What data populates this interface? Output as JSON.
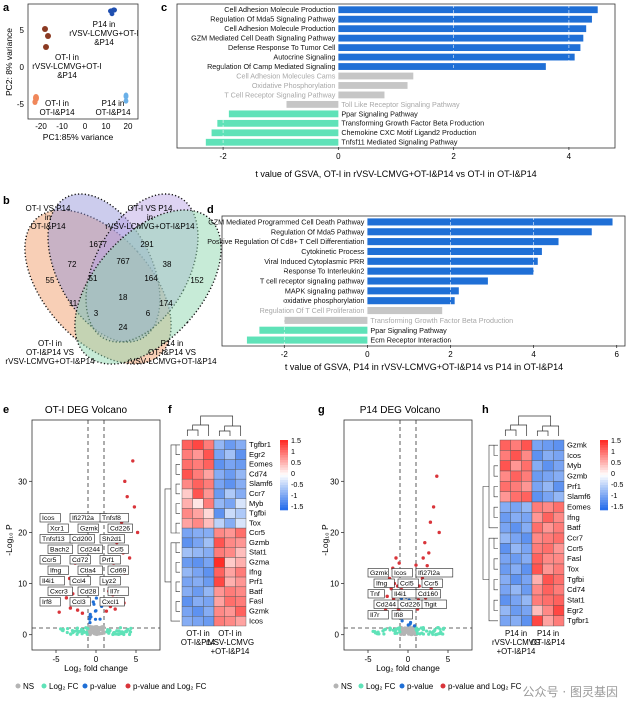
{
  "colors": {
    "blue": "#1f6fd6",
    "gray": "#c6c6c6",
    "teal": "#5fe2b8",
    "red": "#d9343a",
    "lightblue": "#6ab0e8",
    "ns_gray": "#b4b4b4"
  },
  "panels": {
    "a": {
      "letter": "a"
    },
    "b": {
      "letter": "b"
    },
    "c": {
      "letter": "c"
    },
    "d": {
      "letter": "d"
    },
    "e": {
      "letter": "e"
    },
    "f": {
      "letter": "f"
    },
    "g": {
      "letter": "g"
    },
    "h": {
      "letter": "h"
    }
  },
  "pca": {
    "xlabel": "PC1:85% variance",
    "ylabel": "PC2: 8% variance",
    "xticks": [
      "-20",
      "-10",
      "0",
      "10",
      "20"
    ],
    "yticks": [
      "5",
      "0",
      "-5"
    ],
    "groups": [
      {
        "label": "P14 in rVSV-LCMVG+OT-I &P14",
        "color": "#1f4fb0"
      },
      {
        "label": "OT-I in rVSV-LCMVG+OT-I &P14",
        "color": "#8b3a22"
      },
      {
        "label": "OT-I in OT-I&P14",
        "color": "#f0875a"
      },
      {
        "label": "P14 in OT-I&P14",
        "color": "#6ab0e8"
      }
    ],
    "label_lines": {
      "p14_rvsv": [
        "P14 in",
        "rVSV-LCMVG+OT-I",
        "&P14"
      ],
      "oti_rvsv": [
        "OT-I in",
        "rVSV-LCMVG+OT-I",
        "&P14"
      ],
      "oti_oti": [
        "OT-I in",
        "OT-I&P14"
      ],
      "p14_oti": [
        "P14 in",
        "OT-I&P14"
      ]
    }
  },
  "venn": {
    "labels": {
      "tl": [
        "OT-I VS P14",
        "in",
        "OT-I&P14"
      ],
      "tr": [
        "OT-I VS P14",
        "in",
        "rVSV-LCMVG+OT-I&P14"
      ],
      "bl": [
        "OT-I in",
        "OT-I&P14 VS",
        "rVSV-LCMVG+OT-I&P14"
      ],
      "br": [
        "P14 in",
        "OT-I&P14 VS",
        "rVSV-LCMVG+OT-I&P14"
      ]
    },
    "counts": [
      "55",
      "1677",
      "291",
      "152",
      "72",
      "38",
      "767",
      "51",
      "164",
      "18",
      "11",
      "174",
      "3",
      "6",
      "24"
    ]
  },
  "chart_data": [
    {
      "type": "bar",
      "panel": "c",
      "xlabel": "t value of GSVA, OT-I in rVSV-LCMVG+OT-I&P14 vs OT-I in OT-I&P14",
      "xticks": [
        -2,
        0,
        2,
        4
      ],
      "xlim": [
        -2.8,
        4.8
      ],
      "series": [
        {
          "label": "Cell Adhesion Molecule Production",
          "value": 4.5,
          "group": "up"
        },
        {
          "label": "Regulation Of Mda5 Signaling Pathway",
          "value": 4.4,
          "group": "up"
        },
        {
          "label": "Cell Adhesion Molecule Production",
          "value": 4.3,
          "group": "up"
        },
        {
          "label": "GZM Mediated Cell Death Signaling Pathway",
          "value": 4.25,
          "group": "up"
        },
        {
          "label": "Defense Response To Tumor Cell",
          "value": 4.2,
          "group": "up"
        },
        {
          "label": "Autocrine Signaling",
          "value": 4.1,
          "group": "up"
        },
        {
          "label": "Regulation Of Camp Mediated Signaling",
          "value": 3.6,
          "group": "up"
        },
        {
          "label": "Cell Adhesion Molecules Cams",
          "value": 1.3,
          "group": "ns"
        },
        {
          "label": "Oxidative Phosphorylation",
          "value": 1.2,
          "group": "ns"
        },
        {
          "label": "T Cell Receptor Signaling Pathway",
          "value": 0.8,
          "group": "ns"
        },
        {
          "label": "Toll Like Receptor Signaling Pathway",
          "value": -0.9,
          "group": "ns"
        },
        {
          "label": "Ppar Signaling Pathway",
          "value": -1.9,
          "group": "down"
        },
        {
          "label": "Transforming Growth Factor Beta Production",
          "value": -2.1,
          "group": "down"
        },
        {
          "label": "Chemokine CXC Motif Ligand2 Production",
          "value": -2.2,
          "group": "down"
        },
        {
          "label": "Tnfsf11 Mediated Signaling Pathway",
          "value": -2.3,
          "group": "down"
        }
      ]
    },
    {
      "type": "bar",
      "panel": "d",
      "xlabel": "t value of GSVA, P14 in rVSV-LCMVG+OT-I&P14 vs P14 in OT-I&P14",
      "xticks": [
        -2,
        0,
        2,
        4,
        6
      ],
      "xlim": [
        -3.5,
        6.2
      ],
      "series": [
        {
          "label": "GZM Mediated Programmed Cell Death Pathway",
          "value": 5.9,
          "group": "up"
        },
        {
          "label": "Regulation Of Mda5 Pathway",
          "value": 5.4,
          "group": "up"
        },
        {
          "label": "Positive Regulation Of Cd8+ T Cell Differentiation",
          "value": 4.6,
          "group": "up"
        },
        {
          "label": "Cytokinetic Process",
          "value": 4.2,
          "group": "up"
        },
        {
          "label": "Viral Induced Cytoplasmic PRR",
          "value": 4.1,
          "group": "up"
        },
        {
          "label": "Response To Interleukin2",
          "value": 4.0,
          "group": "up"
        },
        {
          "label": "T cell receptor signaling pathway",
          "value": 2.9,
          "group": "up"
        },
        {
          "label": "MAPK signaling pathway",
          "value": 2.2,
          "group": "up"
        },
        {
          "label": "oxidative phosphorylation",
          "value": 2.1,
          "group": "up"
        },
        {
          "label": "Regulation Of T Cell Proliferation",
          "value": 1.8,
          "group": "ns"
        },
        {
          "label": "Transforming Growth Factor Beta Production",
          "value": -2.0,
          "group": "ns"
        },
        {
          "label": "Ppar Signaling Pathway",
          "value": -2.6,
          "group": "down"
        },
        {
          "label": "Ecm Receptor Interaction",
          "value": -2.9,
          "group": "down"
        }
      ]
    },
    {
      "type": "scatter",
      "panel": "e",
      "title": "OT-I DEG Volcano",
      "xlabel": "Log₂ fold change",
      "ylabel": "-Log₁₀ P",
      "xticks": [
        -5,
        0,
        5
      ],
      "yticks": [
        0,
        10,
        20,
        30
      ],
      "xlim": [
        -8,
        8
      ],
      "ylim": [
        -3,
        42
      ],
      "labeled_genes": [
        "Icos",
        "Ifi27l2a",
        "Tnfsf8",
        "Xcr1",
        "Gzmk",
        "Cd226",
        "Tnfsf13",
        "Cd200",
        "Sh2d1",
        "Bach2",
        "Cd244",
        "Ccl5",
        "Ccr5",
        "Cd72",
        "Prf1",
        "Ifng",
        "Ctla4",
        "Cd69",
        "Il4i1",
        "Ccl4",
        "Lyz2",
        "Cxcr3",
        "Cd28",
        "Il7r",
        "Irf8",
        "Ccl3",
        "Cxcl1"
      ],
      "points": [
        [
          4.6,
          34
        ],
        [
          3.6,
          30
        ],
        [
          3.9,
          27
        ],
        [
          4.8,
          25
        ],
        [
          3.2,
          22
        ],
        [
          5.2,
          20
        ],
        [
          2.6,
          18
        ],
        [
          3.4,
          16
        ],
        [
          4.2,
          15
        ],
        [
          2.2,
          14
        ],
        [
          2.8,
          13
        ],
        [
          3.6,
          12
        ],
        [
          1.9,
          11
        ],
        [
          2.4,
          10
        ],
        [
          3.1,
          9
        ],
        [
          1.6,
          8.5
        ],
        [
          2.1,
          7.8
        ],
        [
          2.6,
          7
        ],
        [
          1.5,
          6.5
        ],
        [
          3.5,
          6.2
        ],
        [
          1.8,
          5.5
        ],
        [
          2.4,
          5
        ],
        [
          1.3,
          4.6
        ],
        [
          -2.6,
          14
        ],
        [
          -3.3,
          11
        ],
        [
          -4.1,
          9
        ],
        [
          -2.9,
          8
        ],
        [
          -3.7,
          7.2
        ],
        [
          -2.4,
          6.6
        ],
        [
          -5.2,
          6
        ],
        [
          -3.2,
          5.2
        ],
        [
          -2.3,
          4.8
        ],
        [
          -4.6,
          4.4
        ],
        [
          -1.7,
          4.2
        ]
      ]
    },
    {
      "type": "scatter",
      "panel": "g",
      "title": "P14 DEG Volcano",
      "xlabel": "Log₂ fold change",
      "ylabel": "-Log₁₀ P",
      "xticks": [
        -5,
        0,
        5
      ],
      "yticks": [
        0,
        10,
        20,
        30
      ],
      "xlim": [
        -8,
        8
      ],
      "ylim": [
        -3,
        42
      ],
      "labeled_genes": [
        "Gzmk",
        "Icos",
        "Ifi27l2a",
        "Ifng",
        "Ccl5",
        "Ccr5",
        "Tnf",
        "Il4i1",
        "Cd160",
        "Cd244",
        "Cd226",
        "Tigit",
        "Il7r",
        "Ifi8"
      ],
      "points": [
        [
          3.6,
          31
        ],
        [
          3.2,
          25
        ],
        [
          2.8,
          22
        ],
        [
          3.9,
          20
        ],
        [
          2.1,
          18
        ],
        [
          2.6,
          16
        ],
        [
          1.9,
          15
        ],
        [
          2.4,
          13.5
        ],
        [
          1.5,
          12.5
        ],
        [
          3.1,
          12
        ],
        [
          1.8,
          11
        ],
        [
          2.3,
          10
        ],
        [
          1.4,
          9.5
        ],
        [
          2.9,
          9
        ],
        [
          1.7,
          8
        ],
        [
          2.2,
          7.2
        ],
        [
          1.3,
          6.8
        ],
        [
          2.6,
          6.2
        ],
        [
          1.6,
          5.5
        ],
        [
          1.2,
          5
        ],
        [
          -1.5,
          15
        ],
        [
          -1.9,
          13
        ],
        [
          -1.4,
          12
        ],
        [
          -2.3,
          11
        ],
        [
          -1.7,
          10
        ],
        [
          -1.3,
          9.5
        ],
        [
          -2.1,
          9
        ],
        [
          -1.5,
          8
        ],
        [
          -2.6,
          7.5
        ],
        [
          -1.8,
          7
        ],
        [
          -1.3,
          6.4
        ],
        [
          -2.2,
          6
        ],
        [
          -1.6,
          5.4
        ],
        [
          -1.2,
          5
        ],
        [
          -2.8,
          4.8
        ],
        [
          -0.9,
          10.5
        ],
        [
          -0.8,
          8.8
        ],
        [
          0.9,
          9.6
        ],
        [
          0.8,
          7.7
        ],
        [
          -1.1,
          14
        ],
        [
          1.0,
          13.6
        ],
        [
          -3.0,
          9.6
        ]
      ]
    },
    {
      "type": "heatmap",
      "panel": "f",
      "rows": [
        "Tgfbr1",
        "Egr2",
        "Eomes",
        "Cd74",
        "Slamf6",
        "Ccr7",
        "Myb",
        "Tgfbi",
        "Tox",
        "Ccr5",
        "Gzmb",
        "Stat1",
        "Gzma",
        "Ifng",
        "Prf1",
        "Batf",
        "Fasl",
        "Gzmk",
        "Icos"
      ],
      "column_groups": [
        [
          "OT-I in",
          "OT-I&P14"
        ],
        [
          "OT-I in",
          "rVSV-LCMVG",
          "+OT-I&P14"
        ]
      ],
      "legend_ticks": [
        "1.5",
        "1",
        "0.5",
        "0",
        "-0.5",
        "-1",
        "-1.5"
      ],
      "values": [
        [
          1.2,
          1.4,
          1.0,
          -0.8,
          -1.1,
          -0.9
        ],
        [
          1.0,
          0.8,
          1.3,
          -1.0,
          -0.7,
          -1.2
        ],
        [
          1.1,
          1.0,
          1.2,
          -1.2,
          -1.0,
          -1.1
        ],
        [
          1.3,
          1.0,
          0.7,
          -0.9,
          -1.1,
          -0.8
        ],
        [
          0.9,
          1.2,
          1.0,
          -1.0,
          -1.2,
          -0.9
        ],
        [
          0.4,
          1.3,
          0.8,
          -1.1,
          -0.6,
          -0.9
        ],
        [
          0.6,
          0.2,
          1.0,
          -0.8,
          -1.0,
          -0.3
        ],
        [
          0.9,
          0.7,
          0.3,
          -1.2,
          -0.4,
          -0.6
        ],
        [
          0.7,
          0.9,
          0.5,
          -0.5,
          -0.9,
          -0.3
        ],
        [
          -1.0,
          -0.9,
          -0.9,
          0.9,
          0.8,
          1.1
        ],
        [
          -1.2,
          -1.0,
          -0.7,
          1.3,
          0.9,
          0.8
        ],
        [
          -0.7,
          -0.8,
          -0.9,
          1.0,
          0.9,
          0.5
        ],
        [
          -1.1,
          -1.2,
          -1.0,
          1.6,
          0.4,
          0.6
        ],
        [
          -0.8,
          -1.0,
          -1.2,
          1.2,
          0.7,
          1.0
        ],
        [
          -1.0,
          -0.9,
          -1.1,
          1.4,
          0.6,
          0.8
        ],
        [
          -0.9,
          -1.1,
          -0.8,
          0.8,
          1.0,
          0.9
        ],
        [
          -1.2,
          -0.9,
          -1.0,
          0.7,
          1.1,
          1.0
        ],
        [
          -1.0,
          -1.2,
          -0.9,
          0.9,
          0.8,
          1.2
        ],
        [
          -0.9,
          -1.0,
          -1.1,
          1.0,
          0.9,
          0.7
        ]
      ]
    },
    {
      "type": "heatmap",
      "panel": "h",
      "rows": [
        "Gzmk",
        "Icos",
        "Myb",
        "Gzmb",
        "Prf1",
        "Slamf6",
        "Eomes",
        "Ifng",
        "Batf",
        "Ccr7",
        "Ccr5",
        "Fasl",
        "Tox",
        "Tgfbi",
        "Cd74",
        "Stat1",
        "Egr2",
        "Tgfbr1"
      ],
      "column_groups": [
        [
          "P14 in",
          "rVSV-LCMVG",
          "+OT-I&P14"
        ],
        [
          "P14 in",
          "OT-I&P14"
        ]
      ],
      "legend_ticks": [
        "1.5",
        "1",
        "0.5",
        "0",
        "-0.5",
        "-1",
        "-1.5"
      ],
      "values": [
        [
          1.2,
          1.0,
          1.3,
          -1.0,
          -1.1,
          -1.2
        ],
        [
          1.0,
          1.3,
          0.9,
          -1.2,
          -0.9,
          -1.0
        ],
        [
          1.3,
          0.8,
          1.1,
          -0.9,
          -1.2,
          -1.0
        ],
        [
          0.9,
          1.2,
          1.0,
          -1.1,
          -1.0,
          -0.9
        ],
        [
          1.1,
          1.0,
          0.8,
          -1.0,
          -0.8,
          -1.2
        ],
        [
          0.8,
          1.1,
          1.2,
          -1.2,
          -1.0,
          -0.8
        ],
        [
          -0.9,
          -1.0,
          -0.8,
          1.0,
          0.9,
          1.1
        ],
        [
          -1.1,
          -0.9,
          -1.0,
          0.8,
          1.2,
          0.9
        ],
        [
          -1.0,
          -1.2,
          -0.9,
          1.1,
          0.8,
          1.0
        ],
        [
          -0.8,
          -1.0,
          -1.2,
          0.9,
          1.0,
          1.1
        ],
        [
          -1.2,
          -0.8,
          -1.0,
          1.0,
          1.1,
          0.8
        ],
        [
          -1.0,
          -1.1,
          -0.9,
          1.2,
          0.9,
          0.9
        ],
        [
          -1.1,
          -0.9,
          -1.2,
          1.3,
          0.8,
          1.0
        ],
        [
          -0.9,
          -1.2,
          -1.0,
          0.6,
          1.3,
          1.1
        ],
        [
          -1.0,
          -0.8,
          -1.1,
          0.9,
          1.2,
          1.0
        ],
        [
          -1.2,
          -1.0,
          -0.8,
          1.0,
          1.1,
          1.2
        ],
        [
          -0.8,
          -1.1,
          -1.0,
          0.5,
          0.9,
          1.4
        ],
        [
          -1.0,
          -0.9,
          -1.2,
          1.4,
          0.7,
          1.0
        ]
      ]
    }
  ],
  "volcano_legend": {
    "ns": "NS",
    "log2fc": "Log₂ FC",
    "pvalue": "p-value",
    "both": "p-value and Log₂ FC"
  },
  "watermark": "公众号 · 图灵基因"
}
